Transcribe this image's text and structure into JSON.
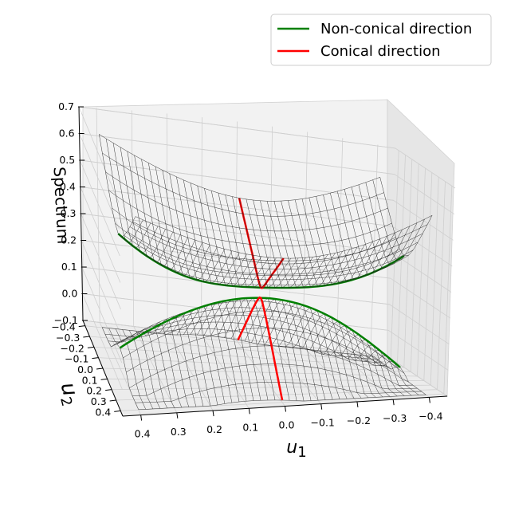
{
  "chart_data": {
    "type": "surface3d",
    "title": "",
    "xlabel": "u_1",
    "xlabel_main": "u",
    "xlabel_sub": "1",
    "ylabel": "u_2",
    "ylabel_main": "u",
    "ylabel_sub": "2",
    "zlabel": "Spectrum",
    "xlim": [
      -0.45,
      0.45
    ],
    "ylim": [
      -0.45,
      0.45
    ],
    "zlim": [
      -0.1,
      0.7
    ],
    "x_ticks": [
      "0.4",
      "0.3",
      "0.2",
      "0.1",
      "0.0",
      "−0.1",
      "−0.2",
      "−0.3",
      "−0.4"
    ],
    "x_tick_values": [
      0.4,
      0.3,
      0.2,
      0.1,
      0.0,
      -0.1,
      -0.2,
      -0.3,
      -0.4
    ],
    "y_ticks": [
      "−0.4",
      "−0.3",
      "−0.2",
      "−0.1",
      "0.0",
      "0.1",
      "0.2",
      "0.3",
      "0.4"
    ],
    "y_tick_values": [
      -0.4,
      -0.3,
      -0.2,
      -0.1,
      0.0,
      0.1,
      0.2,
      0.3,
      0.4
    ],
    "z_ticks": [
      "0.7",
      "0.6",
      "0.5",
      "0.4",
      "0.3",
      "0.2",
      "0.1",
      "0.0",
      "−0.1"
    ],
    "z_tick_values": [
      0.7,
      0.6,
      0.5,
      0.4,
      0.3,
      0.2,
      0.1,
      0.0,
      -0.1
    ],
    "conical_point": [
      0.0,
      0.0,
      0.18
    ],
    "surfaces": [
      {
        "name": "upper band",
        "kind": "wireframe",
        "approx_z_range": [
          0.18,
          0.7
        ]
      },
      {
        "name": "lower band",
        "kind": "wireframe",
        "approx_z_range": [
          -0.25,
          0.18
        ]
      }
    ],
    "series": [
      {
        "name": "Non-conical direction",
        "color": "#008000"
      },
      {
        "name": "Conical direction",
        "color": "#ff0000"
      }
    ],
    "legend": {
      "placement": "top-right",
      "entries": [
        "Non-conical direction",
        "Conical direction"
      ]
    },
    "grid": true
  }
}
